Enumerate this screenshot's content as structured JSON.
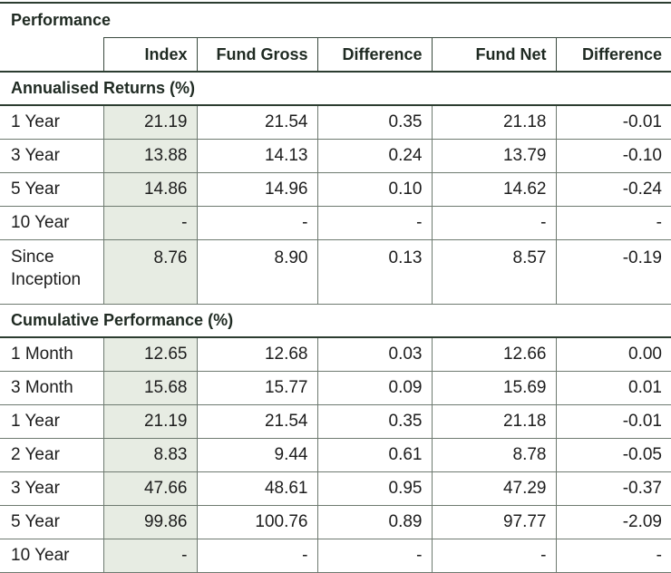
{
  "title": "Performance",
  "columns": [
    "",
    "Index",
    "Fund Gross",
    "Difference",
    "Fund Net",
    "Difference"
  ],
  "sections": [
    {
      "heading": "Annualised Returns (%)",
      "rows": [
        {
          "label": "1 Year",
          "values": [
            "21.19",
            "21.54",
            "0.35",
            "21.18",
            "-0.01"
          ]
        },
        {
          "label": "3 Year",
          "values": [
            "13.88",
            "14.13",
            "0.24",
            "13.79",
            "-0.10"
          ]
        },
        {
          "label": "5 Year",
          "values": [
            "14.86",
            "14.96",
            "0.10",
            "14.62",
            "-0.24"
          ]
        },
        {
          "label": "10 Year",
          "values": [
            "-",
            "-",
            "-",
            "-",
            "-"
          ]
        },
        {
          "label_lines": [
            "Since",
            "Inception"
          ],
          "values": [
            "8.76",
            "8.90",
            "0.13",
            "8.57",
            "-0.19"
          ]
        }
      ]
    },
    {
      "heading": "Cumulative Performance (%)",
      "rows": [
        {
          "label": "1 Month",
          "values": [
            "12.65",
            "12.68",
            "0.03",
            "12.66",
            "0.00"
          ]
        },
        {
          "label": "3 Month",
          "values": [
            "15.68",
            "15.77",
            "0.09",
            "15.69",
            "0.01"
          ]
        },
        {
          "label": "1 Year",
          "values": [
            "21.19",
            "21.54",
            "0.35",
            "21.18",
            "-0.01"
          ]
        },
        {
          "label": "2 Year",
          "values": [
            "8.83",
            "9.44",
            "0.61",
            "8.78",
            "-0.05"
          ]
        },
        {
          "label": "3 Year",
          "values": [
            "47.66",
            "48.61",
            "0.95",
            "47.29",
            "-0.37"
          ]
        },
        {
          "label": "5 Year",
          "values": [
            "99.86",
            "100.76",
            "0.89",
            "97.77",
            "-2.09"
          ]
        },
        {
          "label": "10 Year",
          "values": [
            "-",
            "-",
            "-",
            "-",
            "-"
          ]
        }
      ]
    }
  ]
}
